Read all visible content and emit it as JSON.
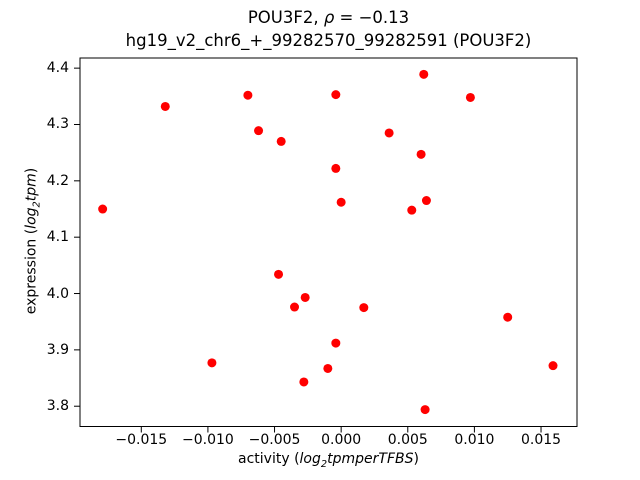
{
  "figure": {
    "title": {
      "prefix": "POU3F2, ",
      "rho": "ρ",
      "suffix": " = −0.13"
    },
    "subtitle": "hg19_v2_chr6_+_99282570_99282591 (POU3F2)",
    "xlabel": {
      "prefix": "activity (",
      "math_main": "log",
      "math_sub": "2",
      "math_tail": "tpmperTFBS",
      "suffix": ")"
    },
    "ylabel": {
      "prefix": "expression (",
      "math_main": "log",
      "math_sub": "2",
      "math_tail": "tpm",
      "suffix": ")"
    }
  },
  "chart_data": {
    "type": "scatter",
    "title": "POU3F2, ρ = −0.13",
    "subtitle": "hg19_v2_chr6_+_99282570_99282591 (POU3F2)",
    "xlabel": "activity (log2tpmperTFBS)",
    "ylabel": "expression (log2tpm)",
    "correlation_rho": -0.13,
    "grid": false,
    "marker_color": "#ff0000",
    "marker_radius_px": 4.5,
    "axis_color": "#000000",
    "xlim": [
      -0.0196,
      0.0177
    ],
    "ylim": [
      3.764,
      4.418
    ],
    "x_ticks": [
      -0.015,
      -0.01,
      -0.005,
      0.0,
      0.005,
      0.01,
      0.015
    ],
    "x_tick_labels": [
      "−0.015",
      "−0.010",
      "−0.005",
      "0.000",
      "0.005",
      "0.010",
      "0.015"
    ],
    "y_ticks": [
      3.8,
      3.9,
      4.0,
      4.1,
      4.2,
      4.3,
      4.4
    ],
    "y_tick_labels": [
      "3.8",
      "3.9",
      "4.0",
      "4.1",
      "4.2",
      "4.3",
      "4.4"
    ],
    "points": [
      [
        -0.0179,
        4.15
      ],
      [
        -0.0132,
        4.332
      ],
      [
        -0.0097,
        3.877
      ],
      [
        -0.007,
        4.352
      ],
      [
        -0.0062,
        4.289
      ],
      [
        -0.0047,
        4.034
      ],
      [
        -0.0045,
        4.27
      ],
      [
        -0.0035,
        3.976
      ],
      [
        -0.0028,
        3.843
      ],
      [
        -0.0027,
        3.993
      ],
      [
        -0.001,
        3.867
      ],
      [
        -0.0004,
        4.353
      ],
      [
        -0.0004,
        4.222
      ],
      [
        -0.0004,
        3.912
      ],
      [
        0.0,
        4.162
      ],
      [
        0.0017,
        3.975
      ],
      [
        0.0036,
        4.285
      ],
      [
        0.0053,
        4.148
      ],
      [
        0.006,
        4.247
      ],
      [
        0.0062,
        4.389
      ],
      [
        0.0063,
        3.794
      ],
      [
        0.0064,
        4.165
      ],
      [
        0.0097,
        4.348
      ],
      [
        0.0125,
        3.958
      ],
      [
        0.0159,
        3.872
      ]
    ]
  }
}
